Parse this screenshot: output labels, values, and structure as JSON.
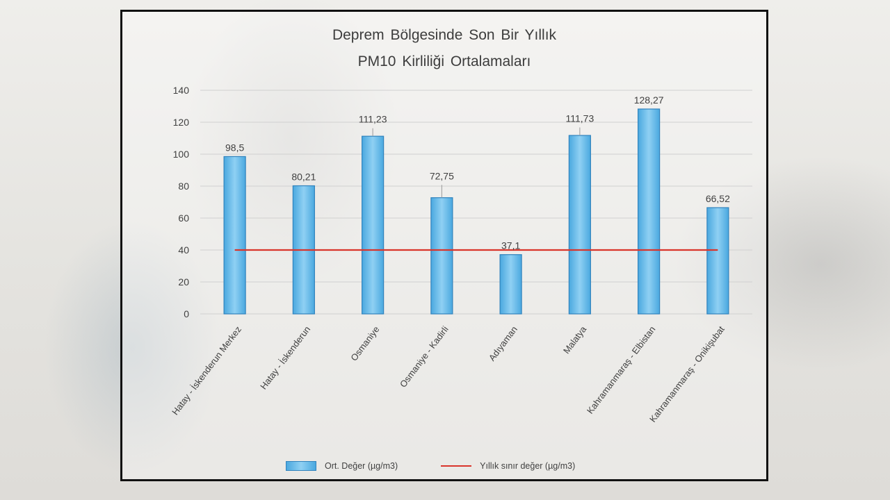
{
  "chart_data": {
    "type": "bar",
    "title_line1": "Deprem Bölgesinde Son Bir Yıllık",
    "title_line2": "PM10 Kirliliği Ortalamaları",
    "categories": [
      "Hatay - İskenderun Merkez",
      "Hatay - İskenderun",
      "Osmaniye",
      "Osmaniye - Kadirli",
      "Adıyaman",
      "Malatya",
      "Kahramanmaraş - Elbistan",
      "Kahramanmaraş - Onikişubat"
    ],
    "series": [
      {
        "name": "Ort. Değer (µg/m3)",
        "type": "bar",
        "values": [
          98.5,
          80.21,
          111.23,
          72.75,
          37.1,
          111.73,
          128.27,
          66.52
        ],
        "labels": [
          "98,5",
          "80,21",
          "111,23",
          "72,75",
          "37,1",
          "111,73",
          "128,27",
          "66,52"
        ],
        "error": [
          0,
          0,
          5,
          8,
          0,
          5,
          0,
          0
        ]
      },
      {
        "name": "Yıllık sınır değer (µg/m3)",
        "type": "line",
        "value": 40
      }
    ],
    "ylim": [
      0,
      140
    ],
    "yticks": [
      0,
      20,
      40,
      60,
      80,
      100,
      120,
      140
    ],
    "grid": true,
    "legend_position": "bottom",
    "colors": {
      "bar_edge": "#3183bd",
      "bar_light": "#8fd0f3",
      "bar_mid": "#4aa8df",
      "limit_line": "#d9342b",
      "grid": "#d0d0d0",
      "text": "#404040"
    }
  }
}
